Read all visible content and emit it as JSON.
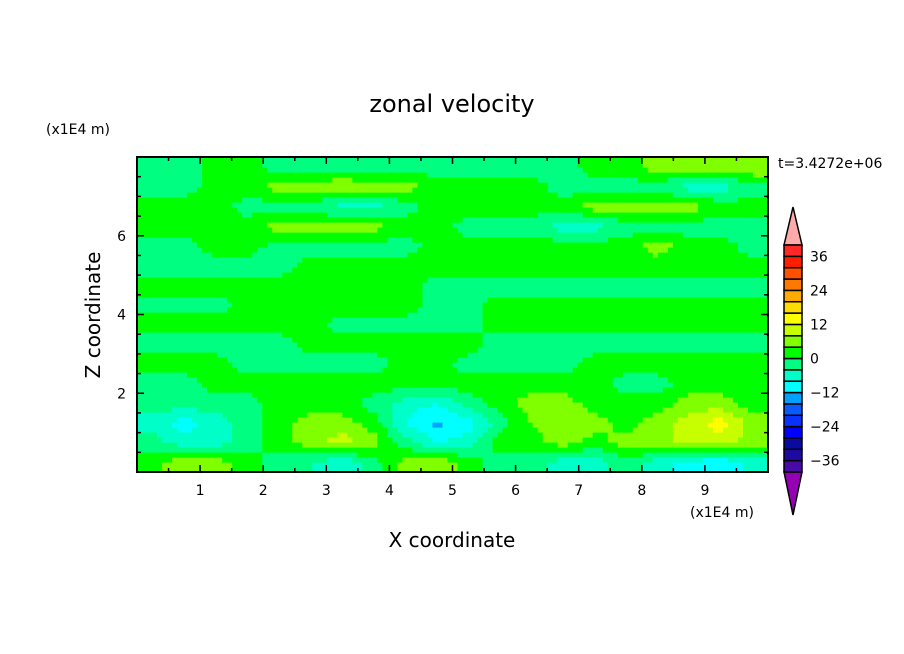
{
  "chart_data": {
    "type": "heatmap",
    "subtype": "filled-contour",
    "title": "zonal velocity",
    "xlabel": "X coordinate",
    "ylabel": "Z coordinate",
    "x_unit_label": "(x1E4 m)",
    "y_unit_label": "(x1E4 m)",
    "time_label": "t=3.4272e+06",
    "xlim": [
      0,
      10
    ],
    "ylim": [
      0,
      8
    ],
    "x_ticks": [
      "1",
      "2",
      "3",
      "4",
      "5",
      "6",
      "7",
      "8",
      "9"
    ],
    "y_ticks": [
      "2",
      "4",
      "6"
    ],
    "x_centers": [
      0.25,
      0.75,
      1.25,
      1.75,
      2.25,
      2.75,
      3.25,
      3.75,
      4.25,
      4.75,
      5.25,
      5.75,
      6.25,
      6.75,
      7.25,
      7.75,
      8.25,
      8.75,
      9.25,
      9.75
    ],
    "z_centers_top_to_bottom": [
      7.75,
      7.25,
      6.75,
      6.25,
      5.75,
      5.25,
      4.75,
      4.25,
      3.75,
      3.25,
      2.75,
      2.25,
      1.75,
      1.25,
      0.75,
      0.25
    ],
    "values": [
      [
        -2,
        -2,
        2,
        2,
        -2,
        -2,
        -2,
        -2,
        -2,
        -2,
        -2,
        -2,
        -2,
        -2,
        2,
        2,
        6,
        6,
        6,
        8
      ],
      [
        -2,
        -2,
        2,
        2,
        6,
        6,
        8,
        6,
        6,
        2,
        2,
        2,
        2,
        -2,
        -2,
        -2,
        -2,
        -6,
        -6,
        -2
      ],
      [
        2,
        2,
        2,
        -2,
        -2,
        -2,
        -6,
        -6,
        -2,
        2,
        2,
        2,
        2,
        2,
        6,
        6,
        6,
        6,
        2,
        2
      ],
      [
        2,
        2,
        2,
        2,
        6,
        6,
        6,
        6,
        2,
        2,
        -2,
        -2,
        -2,
        -6,
        -6,
        -2,
        -2,
        -2,
        -2,
        -2
      ],
      [
        -2,
        -2,
        2,
        2,
        -2,
        -2,
        -2,
        -2,
        -2,
        2,
        2,
        2,
        2,
        2,
        2,
        2,
        6,
        2,
        2,
        -2
      ],
      [
        -2,
        -2,
        -2,
        -2,
        -2,
        2,
        2,
        2,
        2,
        2,
        2,
        2,
        2,
        2,
        2,
        2,
        2,
        2,
        2,
        2
      ],
      [
        2,
        2,
        2,
        2,
        2,
        2,
        2,
        2,
        2,
        -2,
        -2,
        -2,
        -2,
        -2,
        -2,
        -2,
        -2,
        -2,
        -2,
        -2
      ],
      [
        -2,
        -2,
        -2,
        2,
        2,
        2,
        2,
        2,
        2,
        -2,
        -2,
        2,
        2,
        2,
        2,
        2,
        2,
        2,
        2,
        2
      ],
      [
        2,
        2,
        2,
        2,
        2,
        2,
        -2,
        -2,
        -2,
        -2,
        -2,
        2,
        2,
        2,
        2,
        2,
        2,
        2,
        2,
        2
      ],
      [
        -2,
        -2,
        -2,
        -2,
        -2,
        2,
        2,
        2,
        2,
        2,
        2,
        -2,
        -2,
        -2,
        -2,
        -2,
        -2,
        -2,
        -2,
        -2
      ],
      [
        2,
        2,
        2,
        -2,
        -2,
        -2,
        -2,
        -2,
        2,
        2,
        -2,
        -2,
        -2,
        -2,
        2,
        2,
        2,
        2,
        2,
        2
      ],
      [
        -2,
        -2,
        2,
        2,
        2,
        2,
        2,
        2,
        2,
        2,
        2,
        2,
        2,
        2,
        2,
        -2,
        -2,
        2,
        2,
        2
      ],
      [
        -2,
        -2,
        -2,
        -2,
        2,
        2,
        2,
        -2,
        -6,
        -8,
        -2,
        2,
        6,
        6,
        2,
        2,
        2,
        6,
        6,
        2
      ],
      [
        -6,
        -10,
        -6,
        -2,
        2,
        6,
        6,
        2,
        -8,
        -13,
        -10,
        -2,
        4,
        8,
        6,
        2,
        6,
        10,
        14,
        6
      ],
      [
        -2,
        -6,
        -6,
        -2,
        2,
        6,
        10,
        6,
        -2,
        -8,
        -6,
        2,
        2,
        6,
        2,
        6,
        6,
        10,
        10,
        6
      ],
      [
        2,
        8,
        6,
        2,
        -2,
        -4,
        -8,
        -2,
        6,
        8,
        2,
        -2,
        -2,
        -6,
        -6,
        -2,
        -6,
        -10,
        -12,
        -6
      ]
    ],
    "colorbar": {
      "levels_min": -40,
      "levels_max": 40,
      "step": 4,
      "tick_labels": [
        "36",
        "24",
        "12",
        "0",
        "−12",
        "−24",
        "−36"
      ],
      "tick_values": [
        36,
        24,
        12,
        0,
        -12,
        -24,
        -36
      ],
      "colors_bottom_to_top": [
        "#4a0aa8",
        "#1e0aa0",
        "#0a0aa0",
        "#0000ff",
        "#0a32ff",
        "#0a5aff",
        "#00a0ff",
        "#00ffff",
        "#00ffc8",
        "#00ff80",
        "#00ff00",
        "#80ff00",
        "#c8ff00",
        "#ffff00",
        "#ffdc00",
        "#ffaa00",
        "#ff7800",
        "#ff5000",
        "#ff1e00",
        "#ff2828"
      ],
      "under_color": "#9600b4",
      "over_color": "#ffaaaa"
    }
  }
}
